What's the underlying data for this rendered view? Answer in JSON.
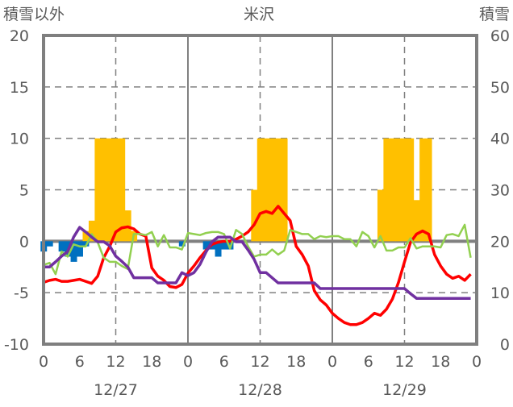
{
  "chart_data": {
    "type": "bar+line",
    "title": "米沢",
    "ylabel_left": "積雪以外",
    "ylabel_right": "積雪",
    "ylim_left": [
      -10,
      20
    ],
    "ylim_right": [
      0,
      60
    ],
    "yticks_left": [
      "20",
      "15",
      "10",
      "5",
      "0",
      "-5",
      "-10"
    ],
    "yticks_right": [
      "60",
      "50",
      "40",
      "30",
      "20",
      "10",
      "0"
    ],
    "xticks": [
      "0",
      "6",
      "12",
      "18",
      "0",
      "6",
      "12",
      "18",
      "0",
      "6",
      "12",
      "18",
      "0"
    ],
    "date_labels": [
      "12/27",
      "12/28",
      "12/29"
    ],
    "x_hours_range": [
      0,
      72
    ],
    "grid": true,
    "bars_snowfall": {
      "axis": "left",
      "color": "#FFC000",
      "points": [
        [
          7,
          1
        ],
        [
          8,
          2
        ],
        [
          9,
          10
        ],
        [
          10,
          10
        ],
        [
          11,
          10
        ],
        [
          12,
          10
        ],
        [
          13,
          10
        ],
        [
          14,
          3
        ],
        [
          15,
          1
        ],
        [
          35,
          5
        ],
        [
          36,
          10
        ],
        [
          37,
          10
        ],
        [
          38,
          10
        ],
        [
          39,
          10
        ],
        [
          40,
          10
        ],
        [
          56,
          5
        ],
        [
          57,
          10
        ],
        [
          58,
          10
        ],
        [
          59,
          10
        ],
        [
          60,
          10
        ],
        [
          61,
          10
        ],
        [
          62,
          4
        ],
        [
          63,
          10
        ],
        [
          64,
          10
        ]
      ]
    },
    "bars_precip_neg": {
      "axis": "left",
      "color": "#0070C0",
      "points": [
        [
          0,
          -1
        ],
        [
          1,
          -0.5
        ],
        [
          3,
          -1
        ],
        [
          4,
          -1.5
        ],
        [
          5,
          -2
        ],
        [
          6,
          -1.5
        ],
        [
          7,
          -0.5
        ],
        [
          23,
          -0.5
        ],
        [
          27,
          -0.8
        ],
        [
          28,
          -0.8
        ],
        [
          29,
          -1.5
        ],
        [
          30,
          -0.8
        ],
        [
          31,
          -0.8
        ]
      ]
    },
    "series": [
      {
        "name": "temperature",
        "axis": "left",
        "color": "#FF0000",
        "values": [
          -4.0,
          -3.8,
          -3.7,
          -3.9,
          -3.9,
          -3.8,
          -3.7,
          -3.9,
          -4.1,
          -3.4,
          -1.6,
          -0.5,
          0.9,
          1.3,
          1.4,
          1.2,
          0.7,
          0.5,
          -2.6,
          -3.4,
          -3.8,
          -4.4,
          -4.5,
          -4.2,
          -3.1,
          -2.4,
          -1.6,
          -0.9,
          -0.3,
          -0.1,
          0.0,
          0.0,
          0.2,
          0.5,
          0.9,
          1.6,
          2.7,
          2.9,
          2.7,
          3.4,
          2.7,
          2.0,
          -0.5,
          -1.3,
          -2.4,
          -4.8,
          -5.7,
          -6.2,
          -7.0,
          -7.5,
          -7.9,
          -8.1,
          -8.1,
          -7.9,
          -7.5,
          -7.0,
          -7.2,
          -6.6,
          -5.6,
          -4.0,
          -2.0,
          -0.1,
          0.7,
          1.0,
          0.7,
          -1.3,
          -2.4,
          -3.2,
          -3.6,
          -3.4,
          -3.8,
          -3.2
        ]
      },
      {
        "name": "other",
        "axis": "left",
        "color": "#92D050",
        "values": [
          -2.3,
          -2.1,
          -3.2,
          -1.0,
          -1.5,
          -0.3,
          -0.5,
          -0.5,
          0.7,
          -0.1,
          -1.6,
          -2.0,
          -2.0,
          -2.4,
          -2.7,
          0.7,
          0.7,
          0.6,
          0.9,
          -0.5,
          0.6,
          -0.6,
          -0.6,
          -0.8,
          0.8,
          0.7,
          0.6,
          0.8,
          0.9,
          0.9,
          0.7,
          -0.7,
          1.1,
          0.7,
          -0.5,
          -1.5,
          -1.3,
          -1.3,
          -0.8,
          -1.3,
          -0.9,
          1.1,
          0.9,
          0.7,
          0.7,
          0.2,
          0.5,
          0.4,
          0.5,
          0.5,
          0.2,
          0.2,
          -0.5,
          0.9,
          0.5,
          -0.6,
          0.5,
          -0.9,
          -0.9,
          -0.6,
          -0.6,
          0.3,
          -0.7,
          -0.5,
          -0.5,
          -0.5,
          -0.6,
          0.6,
          0.7,
          0.5,
          1.6,
          -1.6
        ]
      },
      {
        "name": "snow_depth",
        "axis": "right",
        "color": "#7030A0",
        "values": [
          15.0,
          15.0,
          16.0,
          17.1,
          18.0,
          20.8,
          22.7,
          21.8,
          20.8,
          19.9,
          19.9,
          19.1,
          17.1,
          16.1,
          15.0,
          12.9,
          12.9,
          12.9,
          12.9,
          11.9,
          11.9,
          11.9,
          11.9,
          13.9,
          13.3,
          13.9,
          15.5,
          17.9,
          19.9,
          20.8,
          20.8,
          20.8,
          19.9,
          19.9,
          18.3,
          16.5,
          13.9,
          13.9,
          12.9,
          11.9,
          11.9,
          11.9,
          11.9,
          11.9,
          11.9,
          11.9,
          10.8,
          10.8,
          10.8,
          10.8,
          10.8,
          10.8,
          10.8,
          10.8,
          10.8,
          10.8,
          10.8,
          10.8,
          10.8,
          10.8,
          10.8,
          9.8,
          8.9,
          8.9,
          8.9,
          8.9,
          8.9,
          8.9,
          8.9,
          8.9,
          8.9,
          8.9
        ]
      }
    ]
  }
}
